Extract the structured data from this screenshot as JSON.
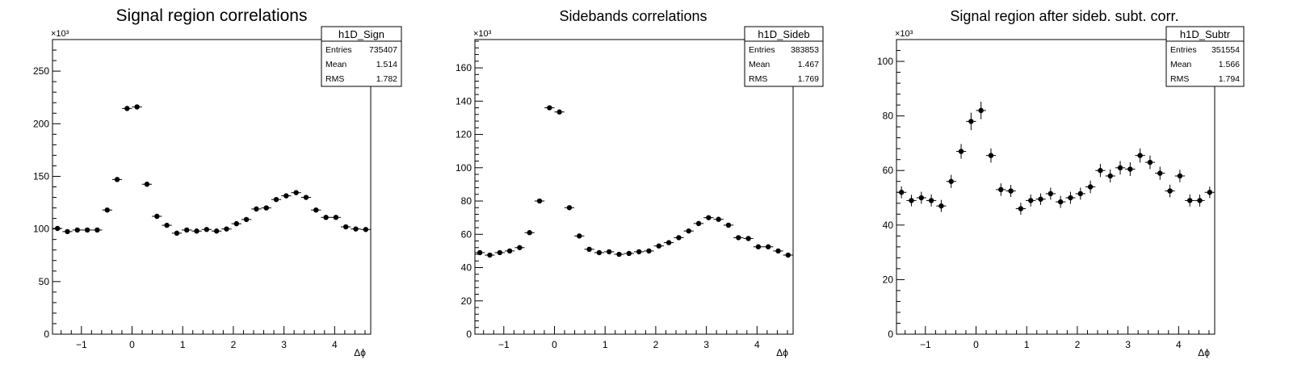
{
  "chart_data": [
    {
      "type": "scatter",
      "title": "Signal region correlations",
      "xlabel": "Δϕ",
      "ylabel": "",
      "y_multiplier": "×10³",
      "xlim": [
        -1.5708,
        4.7124
      ],
      "ylim": [
        0,
        280
      ],
      "xticks": [
        -1,
        0,
        1,
        2,
        3,
        4
      ],
      "xtick_labels": [
        "−1",
        "0",
        "1",
        "2",
        "3",
        "4"
      ],
      "yticks": [
        0,
        50,
        100,
        150,
        200,
        250
      ],
      "ytick_labels": [
        "0",
        "50",
        "100",
        "150",
        "200",
        "250"
      ],
      "x": [
        -1.4726,
        -1.2763,
        -1.0799,
        -0.8836,
        -0.6872,
        -0.4909,
        -0.2945,
        -0.0982,
        0.0982,
        0.2945,
        0.4909,
        0.6872,
        0.8836,
        1.0799,
        1.2763,
        1.4726,
        1.669,
        1.8653,
        2.0617,
        2.258,
        2.4544,
        2.6507,
        2.8471,
        3.0434,
        3.2398,
        3.4361,
        3.6325,
        3.8288,
        4.0252,
        4.2215,
        4.4179,
        4.6142
      ],
      "series": [
        {
          "values": [
            100.5,
            97.5,
            99,
            99,
            99,
            118,
            147,
            214.5,
            216,
            142.5,
            112,
            103.5,
            96,
            99,
            98,
            99.5,
            98,
            100,
            105,
            109,
            119,
            120,
            128,
            131.5,
            134.5,
            130,
            118,
            111,
            111,
            102,
            100,
            99.5
          ]
        }
      ],
      "stats_box": {
        "name": "h1D_Sign",
        "rows": [
          {
            "label": "Entries",
            "value": "735407"
          },
          {
            "label": "Mean",
            "value": "1.514"
          },
          {
            "label": "RMS",
            "value": "1.782"
          }
        ]
      }
    },
    {
      "type": "scatter",
      "title": "Sidebands correlations",
      "xlabel": "Δϕ",
      "ylabel": "",
      "y_multiplier": "×10³",
      "xlim": [
        -1.5708,
        4.7124
      ],
      "ylim": [
        0,
        177
      ],
      "xticks": [
        -1,
        0,
        1,
        2,
        3,
        4
      ],
      "xtick_labels": [
        "−1",
        "0",
        "1",
        "2",
        "3",
        "4"
      ],
      "yticks": [
        0,
        20,
        40,
        60,
        80,
        100,
        120,
        140,
        160
      ],
      "ytick_labels": [
        "0",
        "20",
        "40",
        "60",
        "80",
        "100",
        "120",
        "140",
        "160"
      ],
      "x": [
        -1.4726,
        -1.2763,
        -1.0799,
        -0.8836,
        -0.6872,
        -0.4909,
        -0.2945,
        -0.0982,
        0.0982,
        0.2945,
        0.4909,
        0.6872,
        0.8836,
        1.0799,
        1.2763,
        1.4726,
        1.669,
        1.8653,
        2.0617,
        2.258,
        2.4544,
        2.6507,
        2.8471,
        3.0434,
        3.2398,
        3.4361,
        3.6325,
        3.8288,
        4.0252,
        4.2215,
        4.4179,
        4.6142
      ],
      "series": [
        {
          "values": [
            49,
            47.5,
            49,
            50,
            52,
            61,
            80,
            136,
            133.5,
            76,
            59,
            51,
            49,
            49.5,
            48,
            48.5,
            49.5,
            50,
            53,
            55,
            58,
            62,
            66.5,
            70,
            69,
            65.5,
            58,
            57.5,
            52.5,
            52.5,
            50,
            47.5
          ]
        }
      ],
      "stats_box": {
        "name": "h1D_Sideb",
        "rows": [
          {
            "label": "Entries",
            "value": "383853"
          },
          {
            "label": "Mean",
            "value": "1.467"
          },
          {
            "label": "RMS",
            "value": "1.769"
          }
        ]
      }
    },
    {
      "type": "scatter",
      "title": "Signal region after sideb. subt. corr.",
      "xlabel": "Δϕ",
      "ylabel": "",
      "y_multiplier": "×10³",
      "xlim": [
        -1.5708,
        4.7124
      ],
      "ylim": [
        0,
        108
      ],
      "xticks": [
        -1,
        0,
        1,
        2,
        3,
        4
      ],
      "xtick_labels": [
        "−1",
        "0",
        "1",
        "2",
        "3",
        "4"
      ],
      "yticks": [
        0,
        20,
        40,
        60,
        80,
        100
      ],
      "ytick_labels": [
        "0",
        "20",
        "40",
        "60",
        "80",
        "100"
      ],
      "x": [
        -1.4726,
        -1.2763,
        -1.0799,
        -0.8836,
        -0.6872,
        -0.4909,
        -0.2945,
        -0.0982,
        0.0982,
        0.2945,
        0.4909,
        0.6872,
        0.8836,
        1.0799,
        1.2763,
        1.4726,
        1.669,
        1.8653,
        2.0617,
        2.258,
        2.4544,
        2.6507,
        2.8471,
        3.0434,
        3.2398,
        3.4361,
        3.6325,
        3.8288,
        4.0252,
        4.2215,
        4.4179,
        4.6142
      ],
      "series": [
        {
          "values": [
            52,
            49,
            50,
            49,
            47,
            56,
            67,
            78,
            82,
            65.5,
            53,
            52.5,
            46,
            49,
            49.5,
            51.5,
            48.5,
            50,
            51.5,
            54,
            60,
            58,
            61,
            60.5,
            65.5,
            63,
            59,
            52.5,
            58,
            49,
            49,
            52
          ],
          "errors": [
            2.2,
            2.1,
            2.2,
            2.2,
            2.2,
            2.4,
            2.7,
            3.2,
            3.2,
            2.6,
            2.3,
            2.2,
            2.2,
            2.2,
            2.1,
            2.2,
            2.2,
            2.2,
            2.2,
            2.3,
            2.4,
            2.4,
            2.5,
            2.5,
            2.6,
            2.5,
            2.4,
            2.3,
            2.3,
            2.2,
            2.2,
            2.1
          ]
        }
      ],
      "stats_box": {
        "name": "h1D_Subtr",
        "rows": [
          {
            "label": "Entries",
            "value": "351554"
          },
          {
            "label": "Mean",
            "value": "1.566"
          },
          {
            "label": "RMS",
            "value": "1.794"
          }
        ]
      }
    }
  ]
}
